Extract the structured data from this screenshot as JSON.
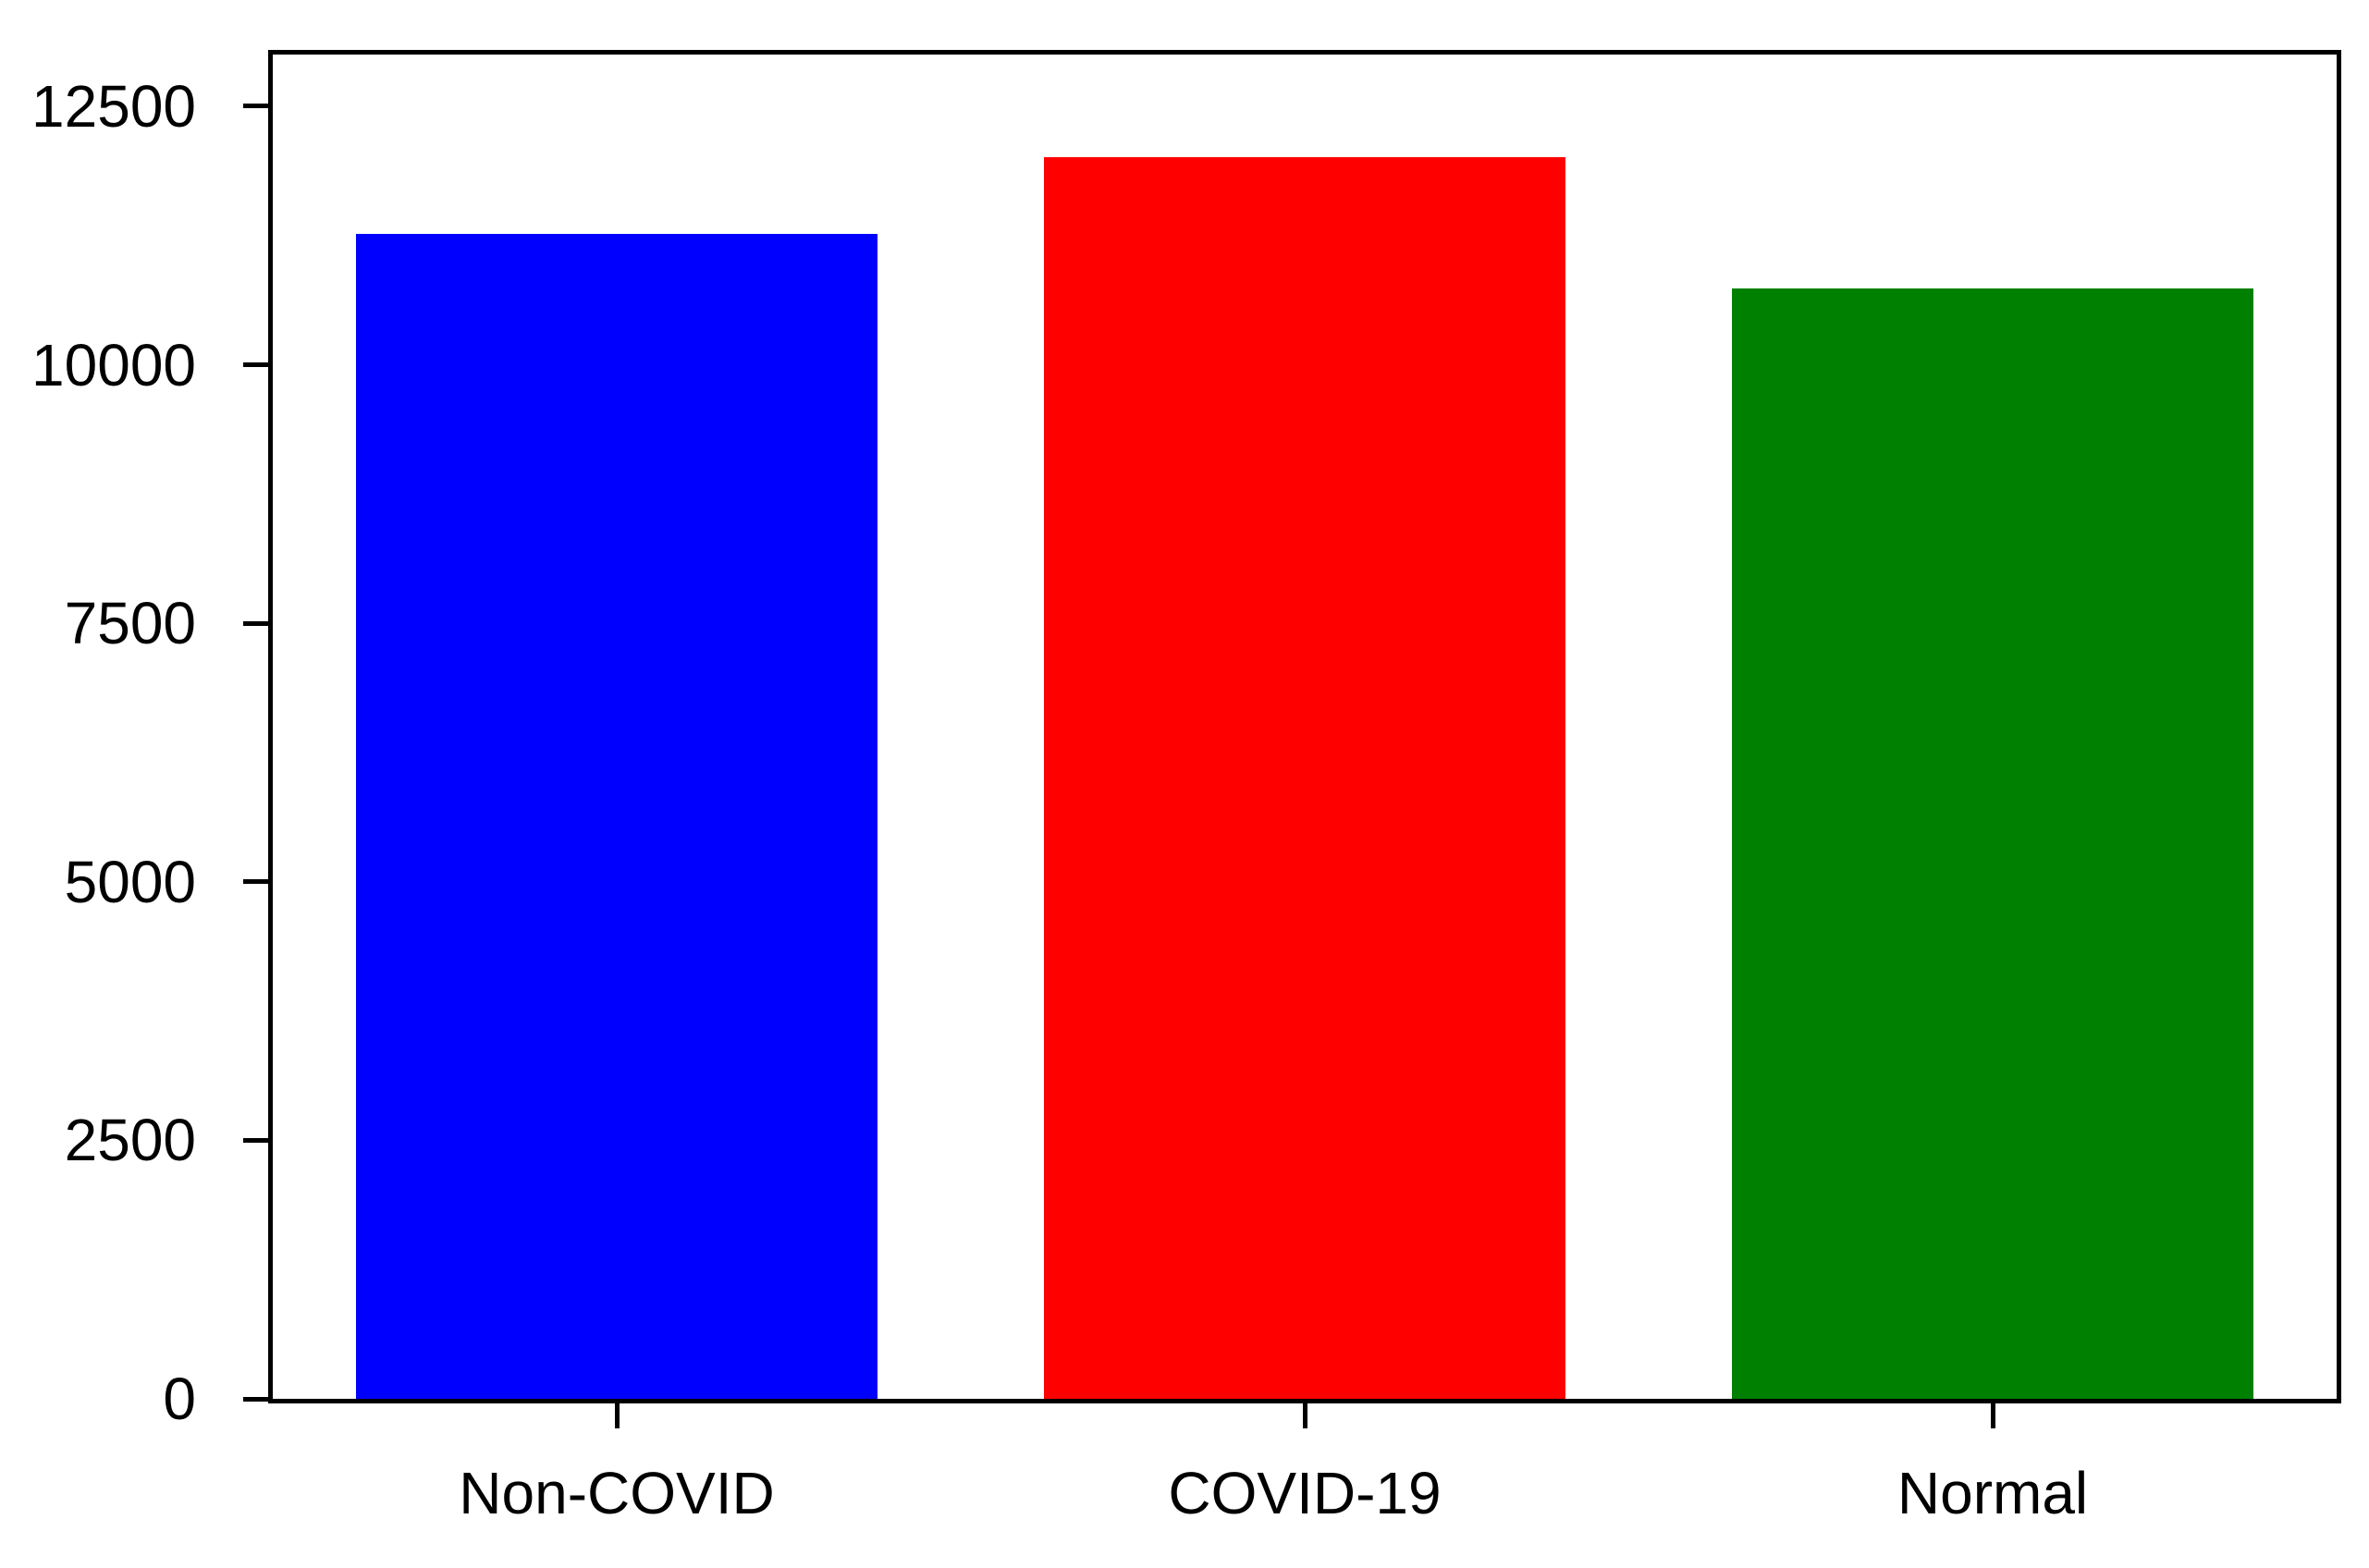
{
  "chart_data": {
    "type": "bar",
    "title": "",
    "xlabel": "",
    "ylabel": "",
    "categories": [
      "Non-COVID",
      "COVID-19",
      "Normal"
    ],
    "values": [
      11270,
      12010,
      10740
    ],
    "bar_colors": [
      "#0000ff",
      "#ff0000",
      "#008000"
    ],
    "ylim": [
      0,
      13000
    ],
    "yticks": [
      0,
      2500,
      5000,
      7500,
      10000,
      12500
    ],
    "grid": false,
    "legend": false,
    "frame": true,
    "bar_width_fraction": 0.759,
    "background_color": "#ffffff",
    "axis_color": "#000000",
    "tick_direction": "out"
  }
}
